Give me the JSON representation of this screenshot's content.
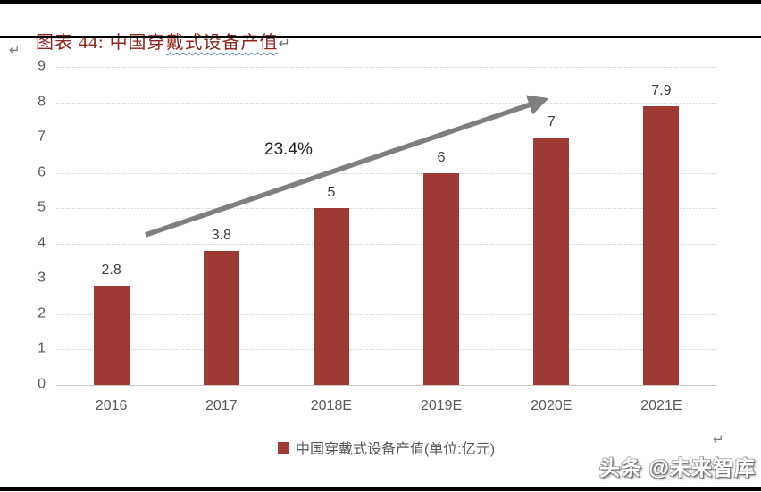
{
  "header": {
    "caption_prefix": "图表 44: ",
    "caption_plain": "中国穿",
    "caption_wavy": "戴式设备产值",
    "paragraph_mark": "↵"
  },
  "chart_data": {
    "type": "bar",
    "title": "中国穿戴式设备产值",
    "unit": "亿元",
    "categories": [
      "2016",
      "2017",
      "2018E",
      "2019E",
      "2020E",
      "2021E"
    ],
    "values": [
      2.8,
      3.8,
      5,
      6,
      7,
      7.9
    ],
    "value_labels": [
      "2.8",
      "3.8",
      "5",
      "6",
      "7",
      "7.9"
    ],
    "ylim": [
      0,
      9
    ],
    "yticks": [
      0,
      1,
      2,
      3,
      4,
      5,
      6,
      7,
      8,
      9
    ],
    "grid": "horizontal-dotted",
    "legend_label": "中国穿戴式设备产值(单位:亿元)",
    "legend_position": "bottom",
    "annotation": "23.4%",
    "bar_color": "#9c3a33",
    "arrow_color": "#7f7f7f"
  },
  "footer": {
    "watermark": "头条 @未来智库",
    "paragraph_mark": "↵"
  }
}
